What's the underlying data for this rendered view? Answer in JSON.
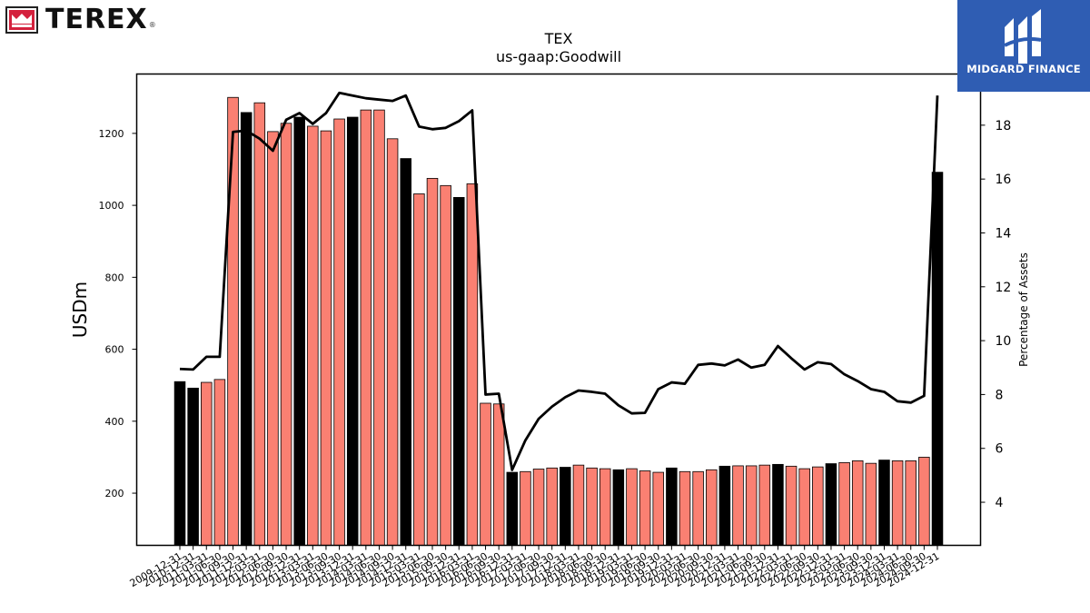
{
  "brand": {
    "name": "TEREX",
    "reg": "®"
  },
  "watermark": {
    "name": "MIDGARD FINANCE"
  },
  "colors": {
    "bar_fy": "#000000",
    "bar_q": "#fa8072",
    "line": "#000000"
  },
  "chart_data": {
    "type": "bar",
    "title": "TEX",
    "subtitle": "us-gaap:Goodwill",
    "ylabel": "USDm",
    "y2label": "Percentage of Assets",
    "ylim": [
      55,
      1365
    ],
    "y2lim": [
      2.4,
      19.9
    ],
    "yticks": [
      200,
      400,
      600,
      800,
      1000,
      1200
    ],
    "y2ticks": [
      4,
      6,
      8,
      10,
      12,
      14,
      16,
      18
    ],
    "grid": false,
    "categories": [
      "2009-12-31",
      "2010-12-31",
      "2011-03-31",
      "2011-06-30",
      "2011-09-30",
      "2011-12-31",
      "2012-03-31",
      "2012-06-30",
      "2012-09-30",
      "2012-12-31",
      "2013-03-31",
      "2013-06-30",
      "2013-09-30",
      "2013-12-31",
      "2014-03-31",
      "2014-06-30",
      "2014-09-30",
      "2014-12-31",
      "2015-03-31",
      "2015-06-30",
      "2015-09-30",
      "2015-12-31",
      "2016-03-31",
      "2016-06-30",
      "2016-09-30",
      "2016-12-31",
      "2017-03-31",
      "2017-06-30",
      "2017-09-30",
      "2017-12-31",
      "2018-03-31",
      "2018-06-30",
      "2018-09-30",
      "2018-12-31",
      "2019-03-31",
      "2019-06-30",
      "2019-09-30",
      "2019-12-31",
      "2020-03-31",
      "2020-06-30",
      "2020-09-30",
      "2020-12-31",
      "2021-03-31",
      "2021-06-30",
      "2021-09-30",
      "2021-12-31",
      "2022-03-31",
      "2022-06-30",
      "2022-09-30",
      "2022-12-31",
      "2023-03-31",
      "2023-06-30",
      "2023-09-30",
      "2023-12-31",
      "2024-03-31",
      "2024-06-30",
      "2024-09-30",
      "2024-12-31"
    ],
    "tick_labels": [
      "2009-12-31",
      "2010-12-31",
      "2011-03-31",
      "2011-06-30",
      "2011-09-30",
      "2011-12-31",
      "2012-03-31",
      "2012-06-30",
      "2012-09-30",
      "2012-12-31",
      "2013-03-31",
      "2013-06-30",
      "2013-09-30",
      "2013-12-31",
      "2014-03-31",
      "2014-06-30",
      "2014-09-30",
      "2014-12-31",
      "2015-03-31",
      "2015-06-30",
      "2015-09-30",
      "2015-12-31",
      "2016-03-31",
      "2016-06-30",
      "2016-09-30",
      "2016-12-31",
      "2017-03-31",
      "2017-06-30",
      "2017-09-30",
      "2017-12-31",
      "2018-03-31",
      "2018-06-30",
      "2018-09-30",
      "2018-12-31",
      "2019-03-31",
      "2019-06-30",
      "2019-09-30",
      "2019-12-31",
      "2020-03-31",
      "2020-06-30",
      "2020-09-30",
      "2020-12-31",
      "2021-03-31",
      "2021-06-30",
      "2021-09-30",
      "2021-12-31",
      "2022-03-31",
      "2022-06-30",
      "2022-09-30",
      "2022-12-31",
      "2023-03-31",
      "2023-06-30",
      "2023-09-30",
      "2023-12-31",
      "2024-03-31",
      "2024-06-30",
      "2024-09-30",
      "2024-12-31"
    ],
    "annual": [
      true,
      true,
      false,
      false,
      false,
      true,
      false,
      false,
      false,
      true,
      false,
      false,
      false,
      true,
      false,
      false,
      false,
      true,
      false,
      false,
      false,
      true,
      false,
      false,
      false,
      true,
      false,
      false,
      false,
      true,
      false,
      false,
      false,
      true,
      false,
      false,
      false,
      true,
      false,
      false,
      false,
      true,
      false,
      false,
      false,
      true,
      false,
      false,
      false,
      true,
      false,
      false,
      false,
      true,
      false,
      false,
      false,
      true
    ],
    "series": [
      {
        "name": "Goodwill",
        "type": "bar",
        "axis": "left",
        "values": [
          510,
          492,
          508,
          516,
          1300,
          1258,
          1285,
          1205,
          1228,
          1245,
          1220,
          1207,
          1240,
          1245,
          1265,
          1265,
          1185,
          1130,
          1032,
          1075,
          1055,
          1022,
          1060,
          450,
          448,
          258,
          260,
          267,
          270,
          272,
          278,
          270,
          268,
          265,
          268,
          262,
          258,
          270,
          260,
          260,
          265,
          275,
          276,
          276,
          278,
          280,
          275,
          268,
          273,
          282,
          285,
          290,
          283,
          292,
          290,
          290,
          300,
          1092
        ]
      },
      {
        "name": "Percentage of Assets",
        "type": "line",
        "axis": "right",
        "values": [
          8.95,
          8.93,
          9.4,
          9.4,
          17.75,
          17.8,
          17.5,
          17.05,
          18.2,
          18.45,
          18.05,
          18.45,
          19.2,
          19.1,
          19.0,
          18.95,
          18.9,
          19.1,
          17.95,
          17.85,
          17.9,
          18.15,
          18.55,
          8.0,
          8.03,
          5.2,
          6.3,
          7.1,
          7.55,
          7.9,
          8.15,
          8.1,
          8.03,
          7.6,
          7.3,
          7.32,
          8.2,
          8.45,
          8.4,
          9.1,
          9.15,
          9.08,
          9.3,
          9.0,
          9.1,
          9.8,
          9.35,
          8.93,
          9.2,
          9.13,
          8.75,
          8.5,
          8.2,
          8.1,
          7.75,
          7.7,
          7.95,
          19.1
        ]
      }
    ]
  }
}
